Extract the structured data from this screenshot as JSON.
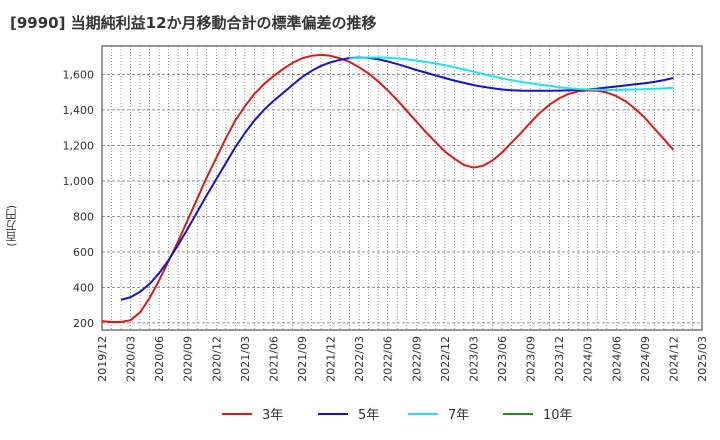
{
  "chart_data": {
    "type": "line",
    "title": "[9990]  当期純利益12か月移動合計の標準偏差の推移",
    "xlabel": "",
    "ylabel": "(百万円)",
    "x_ticks": [
      "2019/12",
      "2020/03",
      "2020/06",
      "2020/09",
      "2020/12",
      "2021/03",
      "2021/06",
      "2021/09",
      "2021/12",
      "2022/03",
      "2022/06",
      "2022/09",
      "2022/12",
      "2023/03",
      "2023/06",
      "2023/09",
      "2023/12",
      "2024/03",
      "2024/06",
      "2024/09",
      "2024/12",
      "2025/03"
    ],
    "y_ticks": [
      200,
      400,
      600,
      800,
      1000,
      1200,
      1400,
      1600
    ],
    "y_tick_labels": [
      "200",
      "400",
      "600",
      "800",
      "1,000",
      "1,200",
      "1,400",
      "1,600"
    ],
    "ylim": [
      160,
      1760
    ],
    "x_range": [
      "2019/12",
      "2025/03"
    ],
    "grid": "vertical dotted per month, horizontal dashed at y ticks",
    "legend_position": "bottom",
    "series": [
      {
        "name": "3年",
        "color": "#dd1a1a",
        "points": [
          [
            "2019/12",
            210
          ],
          [
            "2020/01",
            205
          ],
          [
            "2020/02",
            205
          ],
          [
            "2020/03",
            215
          ],
          [
            "2020/04",
            260
          ],
          [
            "2020/05",
            340
          ],
          [
            "2020/06",
            440
          ],
          [
            "2020/07",
            550
          ],
          [
            "2020/08",
            660
          ],
          [
            "2020/09",
            780
          ],
          [
            "2020/10",
            900
          ],
          [
            "2020/11",
            1020
          ],
          [
            "2020/12",
            1130
          ],
          [
            "2021/01",
            1240
          ],
          [
            "2021/02",
            1340
          ],
          [
            "2021/03",
            1420
          ],
          [
            "2021/04",
            1490
          ],
          [
            "2021/05",
            1545
          ],
          [
            "2021/06",
            1590
          ],
          [
            "2021/07",
            1630
          ],
          [
            "2021/08",
            1665
          ],
          [
            "2021/09",
            1690
          ],
          [
            "2021/10",
            1705
          ],
          [
            "2021/11",
            1710
          ],
          [
            "2021/12",
            1705
          ],
          [
            "2022/01",
            1690
          ],
          [
            "2022/02",
            1670
          ],
          [
            "2022/03",
            1640
          ],
          [
            "2022/04",
            1605
          ],
          [
            "2022/05",
            1560
          ],
          [
            "2022/06",
            1510
          ],
          [
            "2022/07",
            1455
          ],
          [
            "2022/08",
            1395
          ],
          [
            "2022/09",
            1335
          ],
          [
            "2022/10",
            1275
          ],
          [
            "2022/11",
            1220
          ],
          [
            "2022/12",
            1165
          ],
          [
            "2023/01",
            1125
          ],
          [
            "2023/02",
            1090
          ],
          [
            "2023/03",
            1075
          ],
          [
            "2023/04",
            1085
          ],
          [
            "2023/05",
            1115
          ],
          [
            "2023/06",
            1160
          ],
          [
            "2023/07",
            1215
          ],
          [
            "2023/08",
            1270
          ],
          [
            "2023/09",
            1330
          ],
          [
            "2023/10",
            1385
          ],
          [
            "2023/11",
            1430
          ],
          [
            "2023/12",
            1465
          ],
          [
            "2024/01",
            1490
          ],
          [
            "2024/02",
            1505
          ],
          [
            "2024/03",
            1510
          ],
          [
            "2024/04",
            1508
          ],
          [
            "2024/05",
            1498
          ],
          [
            "2024/06",
            1478
          ],
          [
            "2024/07",
            1448
          ],
          [
            "2024/08",
            1405
          ],
          [
            "2024/09",
            1355
          ],
          [
            "2024/10",
            1295
          ],
          [
            "2024/11",
            1235
          ],
          [
            "2024/12",
            1175
          ]
        ]
      },
      {
        "name": "5年",
        "color": "#1414c8",
        "points": [
          [
            "2020/02",
            330
          ],
          [
            "2020/03",
            345
          ],
          [
            "2020/04",
            375
          ],
          [
            "2020/05",
            420
          ],
          [
            "2020/06",
            480
          ],
          [
            "2020/07",
            555
          ],
          [
            "2020/08",
            640
          ],
          [
            "2020/09",
            730
          ],
          [
            "2020/10",
            825
          ],
          [
            "2020/11",
            920
          ],
          [
            "2020/12",
            1010
          ],
          [
            "2021/01",
            1100
          ],
          [
            "2021/02",
            1190
          ],
          [
            "2021/03",
            1270
          ],
          [
            "2021/04",
            1340
          ],
          [
            "2021/05",
            1400
          ],
          [
            "2021/06",
            1450
          ],
          [
            "2021/07",
            1495
          ],
          [
            "2021/08",
            1540
          ],
          [
            "2021/09",
            1585
          ],
          [
            "2021/10",
            1620
          ],
          [
            "2021/11",
            1648
          ],
          [
            "2021/12",
            1668
          ],
          [
            "2022/01",
            1682
          ],
          [
            "2022/02",
            1692
          ],
          [
            "2022/03",
            1695
          ],
          [
            "2022/04",
            1693
          ],
          [
            "2022/05",
            1685
          ],
          [
            "2022/06",
            1673
          ],
          [
            "2022/07",
            1658
          ],
          [
            "2022/08",
            1642
          ],
          [
            "2022/09",
            1625
          ],
          [
            "2022/10",
            1610
          ],
          [
            "2022/11",
            1595
          ],
          [
            "2022/12",
            1580
          ],
          [
            "2023/01",
            1565
          ],
          [
            "2023/02",
            1552
          ],
          [
            "2023/03",
            1540
          ],
          [
            "2023/04",
            1530
          ],
          [
            "2023/05",
            1522
          ],
          [
            "2023/06",
            1515
          ],
          [
            "2023/07",
            1511
          ],
          [
            "2023/08",
            1509
          ],
          [
            "2023/09",
            1508
          ],
          [
            "2023/10",
            1508
          ],
          [
            "2023/11",
            1508
          ],
          [
            "2023/12",
            1509
          ],
          [
            "2024/01",
            1510
          ],
          [
            "2024/02",
            1512
          ],
          [
            "2024/03",
            1515
          ],
          [
            "2024/04",
            1520
          ],
          [
            "2024/05",
            1526
          ],
          [
            "2024/06",
            1532
          ],
          [
            "2024/07",
            1538
          ],
          [
            "2024/08",
            1544
          ],
          [
            "2024/09",
            1550
          ],
          [
            "2024/10",
            1558
          ],
          [
            "2024/11",
            1568
          ],
          [
            "2024/12",
            1580
          ]
        ]
      },
      {
        "name": "7年",
        "color": "#1ee6e6",
        "points": [
          [
            "2022/02",
            1690
          ],
          [
            "2022/03",
            1693
          ],
          [
            "2022/04",
            1695
          ],
          [
            "2022/05",
            1695
          ],
          [
            "2022/06",
            1694
          ],
          [
            "2022/07",
            1690
          ],
          [
            "2022/08",
            1685
          ],
          [
            "2022/09",
            1678
          ],
          [
            "2022/10",
            1670
          ],
          [
            "2022/11",
            1662
          ],
          [
            "2022/12",
            1652
          ],
          [
            "2023/01",
            1640
          ],
          [
            "2023/02",
            1628
          ],
          [
            "2023/03",
            1615
          ],
          [
            "2023/04",
            1602
          ],
          [
            "2023/05",
            1590
          ],
          [
            "2023/06",
            1578
          ],
          [
            "2023/07",
            1568
          ],
          [
            "2023/08",
            1558
          ],
          [
            "2023/09",
            1550
          ],
          [
            "2023/10",
            1542
          ],
          [
            "2023/11",
            1535
          ],
          [
            "2023/12",
            1528
          ],
          [
            "2024/01",
            1522
          ],
          [
            "2024/02",
            1518
          ],
          [
            "2024/03",
            1515
          ],
          [
            "2024/04",
            1513
          ],
          [
            "2024/05",
            1512
          ],
          [
            "2024/06",
            1512
          ],
          [
            "2024/07",
            1513
          ],
          [
            "2024/08",
            1515
          ],
          [
            "2024/09",
            1517
          ],
          [
            "2024/10",
            1519
          ],
          [
            "2024/11",
            1521
          ],
          [
            "2024/12",
            1525
          ]
        ]
      },
      {
        "name": "10年",
        "color": "#228b22",
        "points": []
      }
    ]
  }
}
